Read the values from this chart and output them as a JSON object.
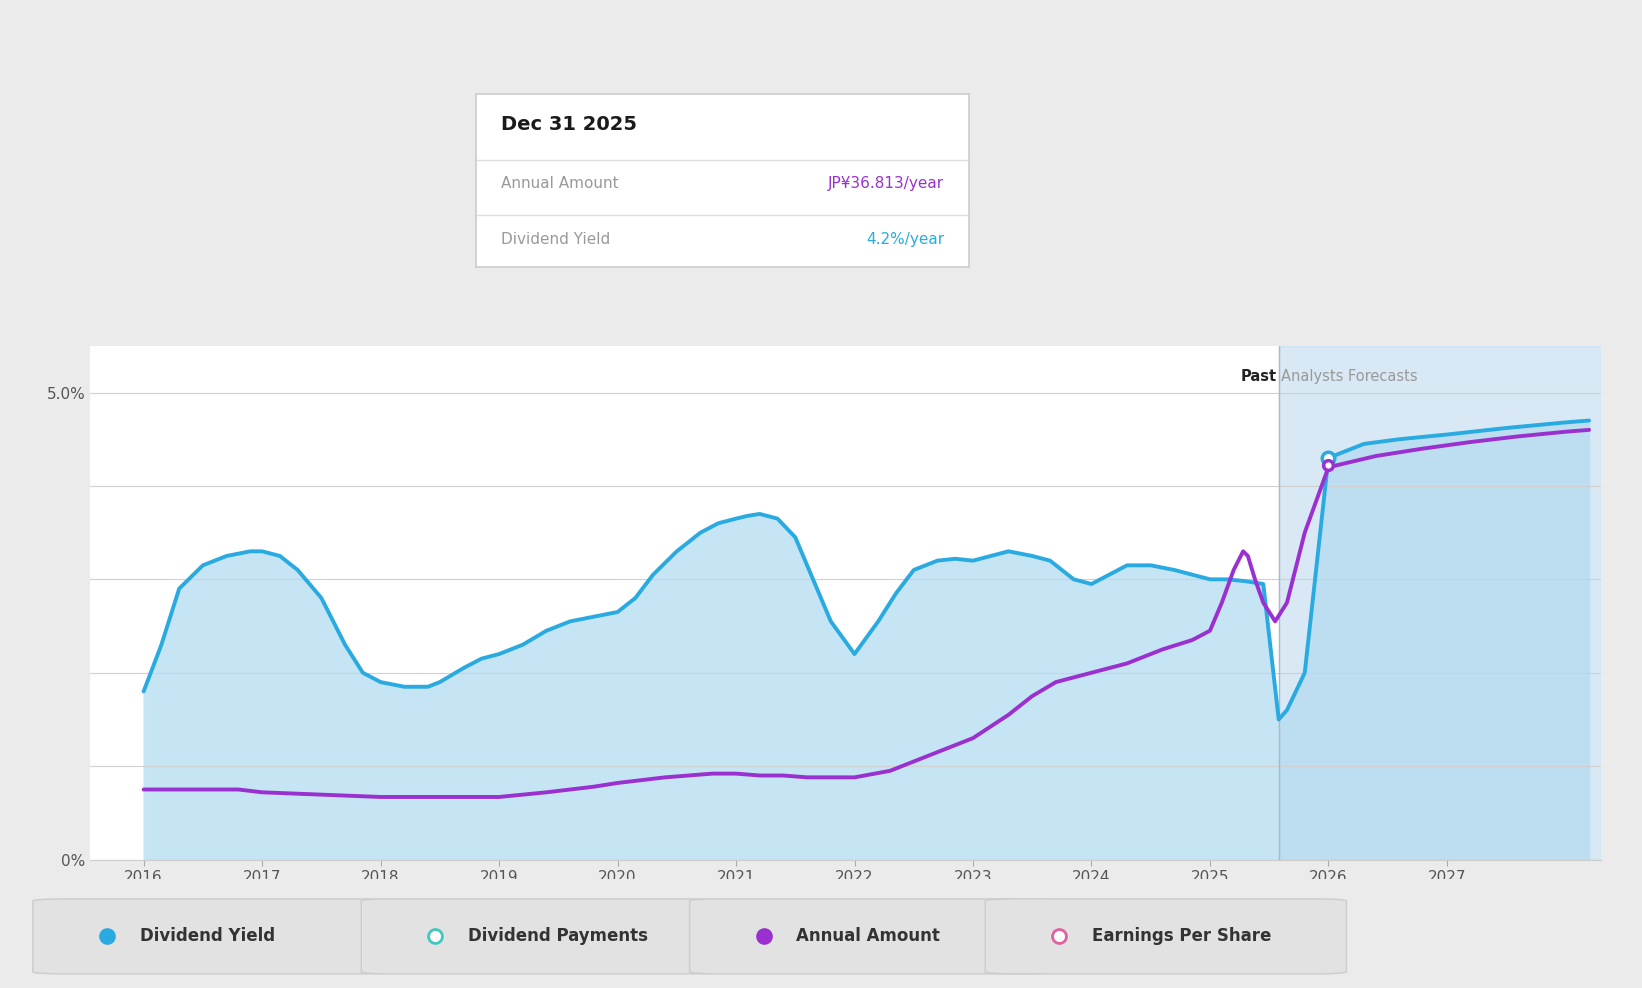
{
  "bg_color": "#ebebeb",
  "chart_bg": "#ffffff",
  "fill_color_main": "#cce5f5",
  "fill_color_forecast": "#d0e8f5",
  "forecast_start": 2025.58,
  "past_label": "Past",
  "forecast_label": "Analysts Forecasts",
  "ylim": [
    0,
    5.5
  ],
  "xlim": [
    2015.55,
    2028.3
  ],
  "yticks": [
    0,
    5.0
  ],
  "ytick_labels": [
    "0%",
    "5.0%"
  ],
  "xticks": [
    2016,
    2017,
    2018,
    2019,
    2020,
    2021,
    2022,
    2023,
    2024,
    2025,
    2026,
    2027
  ],
  "tooltip": {
    "date": "Dec 31 2025",
    "annual_amount_label": "Annual Amount",
    "annual_amount_value": "JP¥36.813/year",
    "annual_amount_color": "#9b30d0",
    "dividend_yield_label": "Dividend Yield",
    "dividend_yield_value": "4.2%/year",
    "dividend_yield_color": "#29aae1"
  },
  "dividend_yield": {
    "color": "#29aae1",
    "fill_color": "#c5e5f5",
    "lw": 2.8,
    "x": [
      2016.0,
      2016.15,
      2016.3,
      2016.5,
      2016.7,
      2016.9,
      2017.0,
      2017.15,
      2017.3,
      2017.5,
      2017.7,
      2017.85,
      2018.0,
      2018.2,
      2018.4,
      2018.5,
      2018.7,
      2018.85,
      2019.0,
      2019.2,
      2019.4,
      2019.6,
      2019.8,
      2020.0,
      2020.15,
      2020.3,
      2020.5,
      2020.7,
      2020.85,
      2021.0,
      2021.1,
      2021.2,
      2021.35,
      2021.5,
      2021.65,
      2021.8,
      2022.0,
      2022.2,
      2022.35,
      2022.5,
      2022.7,
      2022.85,
      2023.0,
      2023.15,
      2023.3,
      2023.5,
      2023.65,
      2023.85,
      2024.0,
      2024.15,
      2024.3,
      2024.5,
      2024.7,
      2024.85,
      2025.0,
      2025.15,
      2025.3,
      2025.45,
      2025.58,
      2025.65,
      2025.8,
      2026.0,
      2026.3,
      2026.6,
      2027.0,
      2027.5,
      2028.0,
      2028.2
    ],
    "y": [
      1.8,
      2.3,
      2.9,
      3.15,
      3.25,
      3.3,
      3.3,
      3.25,
      3.1,
      2.8,
      2.3,
      2.0,
      1.9,
      1.85,
      1.85,
      1.9,
      2.05,
      2.15,
      2.2,
      2.3,
      2.45,
      2.55,
      2.6,
      2.65,
      2.8,
      3.05,
      3.3,
      3.5,
      3.6,
      3.65,
      3.68,
      3.7,
      3.65,
      3.45,
      3.0,
      2.55,
      2.2,
      2.55,
      2.85,
      3.1,
      3.2,
      3.22,
      3.2,
      3.25,
      3.3,
      3.25,
      3.2,
      3.0,
      2.95,
      3.05,
      3.15,
      3.15,
      3.1,
      3.05,
      3.0,
      3.0,
      2.98,
      2.95,
      1.5,
      1.6,
      2.0,
      4.3,
      4.45,
      4.5,
      4.55,
      4.62,
      4.68,
      4.7
    ]
  },
  "annual_amount": {
    "color": "#9b30d0",
    "lw": 2.8,
    "x": [
      2016.0,
      2016.4,
      2016.8,
      2017.0,
      2017.4,
      2017.8,
      2018.0,
      2018.4,
      2018.8,
      2019.0,
      2019.4,
      2019.8,
      2020.0,
      2020.4,
      2020.8,
      2021.0,
      2021.2,
      2021.4,
      2021.6,
      2021.8,
      2022.0,
      2022.3,
      2022.6,
      2023.0,
      2023.3,
      2023.5,
      2023.7,
      2024.0,
      2024.3,
      2024.6,
      2024.85,
      2025.0,
      2025.1,
      2025.2,
      2025.28,
      2025.32,
      2025.38,
      2025.45,
      2025.55,
      2025.65,
      2025.8,
      2026.0,
      2026.4,
      2026.8,
      2027.2,
      2027.6,
      2028.0,
      2028.2
    ],
    "y": [
      0.75,
      0.75,
      0.75,
      0.72,
      0.7,
      0.68,
      0.67,
      0.67,
      0.67,
      0.67,
      0.72,
      0.78,
      0.82,
      0.88,
      0.92,
      0.92,
      0.9,
      0.9,
      0.88,
      0.88,
      0.88,
      0.95,
      1.1,
      1.3,
      1.55,
      1.75,
      1.9,
      2.0,
      2.1,
      2.25,
      2.35,
      2.45,
      2.75,
      3.1,
      3.3,
      3.25,
      3.0,
      2.75,
      2.55,
      2.75,
      3.5,
      4.2,
      4.32,
      4.4,
      4.47,
      4.53,
      4.58,
      4.6
    ]
  },
  "legend": [
    {
      "label": "Dividend Yield",
      "color": "#29aae1",
      "filled": true
    },
    {
      "label": "Dividend Payments",
      "color": "#40c8c0",
      "filled": false
    },
    {
      "label": "Annual Amount",
      "color": "#9b30d0",
      "filled": true
    },
    {
      "label": "Earnings Per Share",
      "color": "#e060a0",
      "filled": false
    }
  ]
}
